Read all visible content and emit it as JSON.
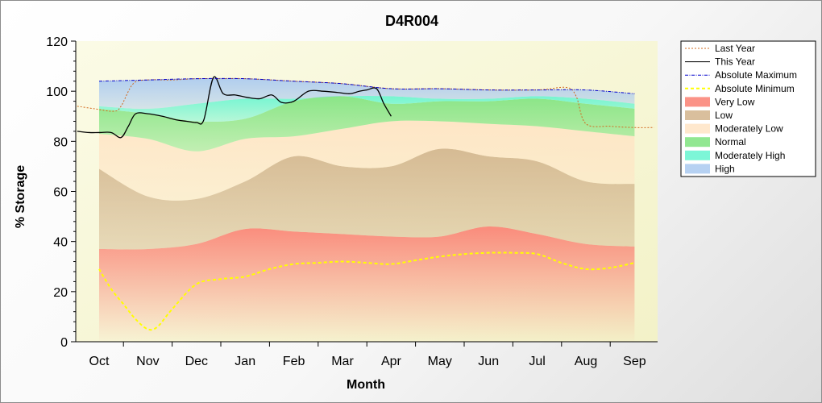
{
  "chart_data": {
    "type": "area",
    "title": "D4R004",
    "xlabel": "Month",
    "ylabel": "% Storage",
    "ylim": [
      0,
      120
    ],
    "y_ticks": [
      "0",
      "20",
      "40",
      "60",
      "80",
      "100",
      "120"
    ],
    "y_tick_values": [
      0,
      20,
      40,
      60,
      80,
      100,
      120
    ],
    "categories": [
      "Oct",
      "Nov",
      "Dec",
      "Jan",
      "Feb",
      "Mar",
      "Apr",
      "May",
      "Jun",
      "Jul",
      "Aug",
      "Sep"
    ],
    "legend_position": "right",
    "band_x": [
      0,
      1,
      2,
      3,
      4,
      5,
      6,
      7,
      8,
      9,
      10,
      11
    ],
    "bands": [
      {
        "name": "Very Low",
        "color": "#fa8072",
        "lower": [
          0,
          0,
          0,
          0,
          0,
          0,
          0,
          0,
          0,
          0,
          0,
          0
        ],
        "upper": [
          37,
          37,
          39,
          45,
          44,
          43,
          42,
          42,
          46,
          43,
          39,
          38
        ]
      },
      {
        "name": "Low",
        "color": "#d2b48c",
        "lower": [
          37,
          37,
          39,
          45,
          44,
          43,
          42,
          42,
          46,
          43,
          39,
          38
        ],
        "upper": [
          69,
          58,
          57,
          64,
          74,
          70,
          70,
          77,
          74,
          72,
          64,
          63
        ]
      },
      {
        "name": "Moderately Low",
        "color": "#ffe4c4",
        "lower": [
          69,
          58,
          57,
          64,
          74,
          70,
          70,
          77,
          74,
          72,
          64,
          63
        ],
        "upper": [
          83,
          81,
          76,
          81,
          82,
          85,
          88,
          88,
          87,
          86,
          84,
          82
        ]
      },
      {
        "name": "Normal",
        "color": "#7ee37e",
        "lower": [
          83,
          81,
          76,
          81,
          82,
          85,
          88,
          88,
          87,
          86,
          84,
          82
        ],
        "upper": [
          93,
          91,
          88,
          89,
          96,
          98,
          95,
          96,
          96,
          97,
          95,
          93
        ]
      },
      {
        "name": "Moderately High",
        "color": "#66f5d0",
        "lower": [
          93,
          91,
          88,
          89,
          96,
          98,
          95,
          96,
          96,
          97,
          95,
          93
        ],
        "upper": [
          94,
          93,
          95,
          97,
          97,
          98,
          98,
          97,
          97,
          98,
          97,
          95
        ]
      },
      {
        "name": "High",
        "color": "#a9c9f0",
        "lower": [
          94,
          93,
          95,
          97,
          97,
          98,
          98,
          97,
          97,
          98,
          97,
          95
        ],
        "upper": [
          104,
          104.5,
          105,
          105,
          104,
          103,
          101,
          101,
          100.5,
          100.5,
          100.5,
          99
        ]
      }
    ],
    "lines": [
      {
        "name": "Last Year",
        "color": "#d2691e",
        "style": "dotted",
        "width": 1,
        "x": [
          -0.45,
          -0.1,
          0.3,
          0.45,
          0.7,
          1.0,
          1.5,
          2.0,
          2.5,
          3.0,
          4.0,
          5.0,
          6.0,
          7.0,
          8.0,
          9.0,
          9.6,
          9.8,
          10.0,
          10.5,
          11.0,
          11.4
        ],
        "y": [
          94,
          93,
          92,
          94,
          103,
          104.5,
          104.5,
          105,
          105,
          105,
          104,
          103,
          101,
          101,
          100.5,
          100.5,
          101.5,
          98,
          87,
          86,
          85.5,
          85.5
        ]
      },
      {
        "name": "This Year",
        "color": "#000000",
        "style": "solid",
        "width": 1.3,
        "x": [
          -0.45,
          -0.2,
          0.0,
          0.25,
          0.45,
          0.6,
          0.75,
          1.0,
          1.3,
          1.6,
          1.8,
          2.0,
          2.15,
          2.35,
          2.55,
          2.8,
          3.05,
          3.3,
          3.55,
          3.75,
          4.0,
          4.3,
          4.6,
          4.9,
          5.15,
          5.35,
          5.5,
          5.7,
          5.85,
          6.0
        ],
        "y": [
          84,
          83.5,
          83.5,
          83.5,
          81.5,
          86,
          91,
          91,
          90,
          88.5,
          88,
          87.5,
          88.5,
          105.5,
          99,
          98.5,
          97.5,
          97,
          98.5,
          95.5,
          96,
          100,
          100,
          99.5,
          99,
          100,
          100.5,
          101,
          95,
          90
        ]
      },
      {
        "name": "Absolute Maximum",
        "color": "#0000cd",
        "style": "dashdot",
        "width": 1,
        "x": [
          0,
          1,
          2,
          3,
          4,
          5,
          6,
          7,
          8,
          9,
          10,
          11
        ],
        "y": [
          104,
          104.5,
          105,
          105,
          104,
          103,
          101,
          101,
          100.5,
          100.5,
          100.5,
          99
        ]
      },
      {
        "name": "Absolute Minimum",
        "color": "#ffff00",
        "style": "dashed",
        "width": 2,
        "x": [
          0,
          0.25,
          0.5,
          0.75,
          1.0,
          1.2,
          1.5,
          2.0,
          2.5,
          3.0,
          3.5,
          4.0,
          4.5,
          5.0,
          5.5,
          6.0,
          6.5,
          7.0,
          7.5,
          8.0,
          8.5,
          9.0,
          9.5,
          10.0,
          10.5,
          11.0
        ],
        "y": [
          29,
          21,
          15,
          9,
          5,
          6,
          13,
          23,
          25,
          26,
          29,
          31,
          31.5,
          32,
          31.5,
          31,
          32.5,
          34,
          35,
          35.5,
          35.5,
          35,
          31.5,
          29,
          29.5,
          31.5
        ]
      }
    ]
  },
  "legend": {
    "items": [
      {
        "label": "Last Year",
        "kind": "line",
        "color": "#d2691e",
        "style": "dotted"
      },
      {
        "label": "This Year",
        "kind": "line",
        "color": "#000000",
        "style": "solid"
      },
      {
        "label": "Absolute Maximum",
        "kind": "line",
        "color": "#0000cd",
        "style": "dashdot"
      },
      {
        "label": "Absolute Minimum",
        "kind": "line",
        "color": "#ffff00",
        "style": "dashed"
      },
      {
        "label": "Very Low",
        "kind": "fill",
        "color": "#fa8072"
      },
      {
        "label": "Low",
        "kind": "fill",
        "color": "#d2b48c"
      },
      {
        "label": "Moderately Low",
        "kind": "fill",
        "color": "#ffe4c4"
      },
      {
        "label": "Normal",
        "kind": "fill",
        "color": "#7ee37e"
      },
      {
        "label": "Moderately High",
        "kind": "fill",
        "color": "#66f5d0"
      },
      {
        "label": "High",
        "kind": "fill",
        "color": "#a9c9f0"
      }
    ]
  }
}
